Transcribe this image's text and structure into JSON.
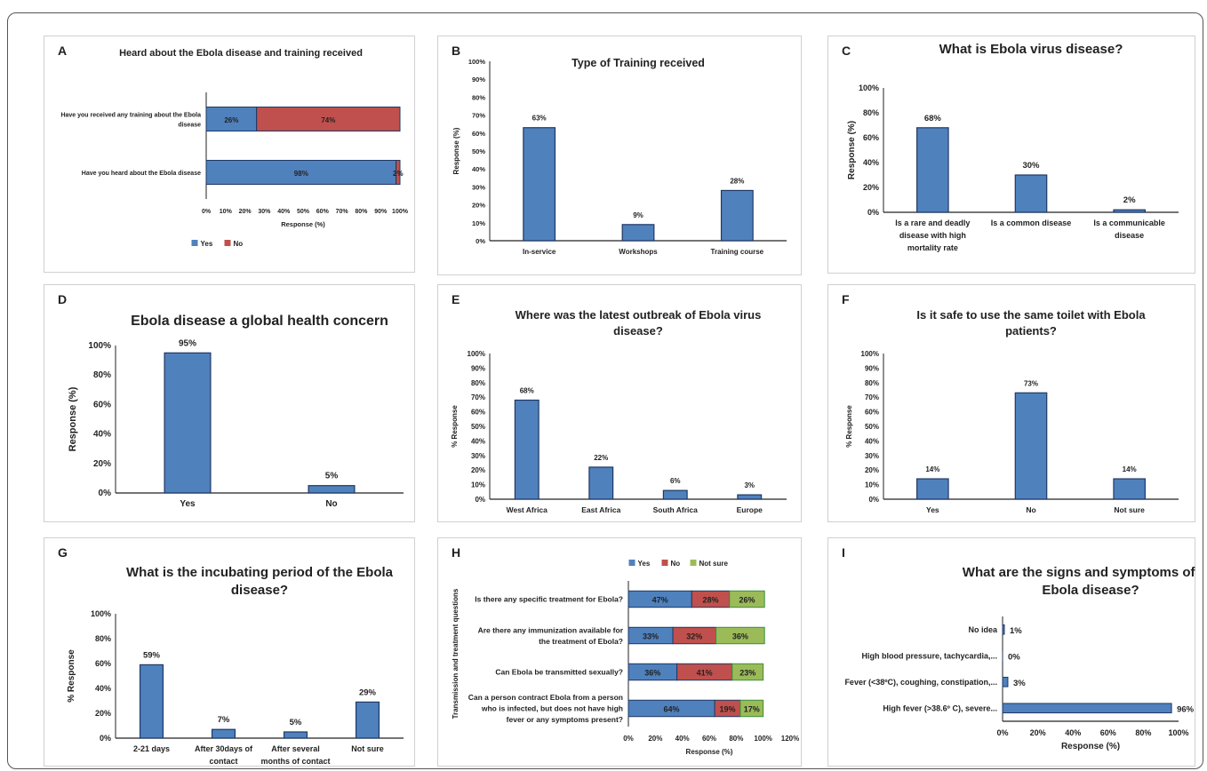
{
  "panels": [
    {
      "letter": "A",
      "type": "hbar-stacked",
      "title": [
        "Heard about the Ebola disease and training received"
      ],
      "categories": [
        [
          "Have you received any training about the Ebola",
          "disease"
        ],
        [
          "Have you heard about the Ebola disease"
        ]
      ],
      "series": [
        {
          "name": "Yes",
          "color": "#4f81bd",
          "values": [
            26,
            98
          ],
          "labels": [
            "26%",
            "98%"
          ]
        },
        {
          "name": "No",
          "color": "#c0504d",
          "values": [
            74,
            2
          ],
          "labels": [
            "74%",
            "2%"
          ]
        }
      ],
      "xlim": [
        0,
        100
      ],
      "xticks": [
        "0%",
        "10%",
        "20%",
        "30%",
        "40%",
        "50%",
        "60%",
        "70%",
        "80%",
        "90%",
        "100%"
      ],
      "xlabel": "Response (%)",
      "ylabel": "",
      "legend": "bottom"
    },
    {
      "letter": "B",
      "type": "bar",
      "title": [
        "Type of Training received"
      ],
      "categories": [
        [
          "In-service"
        ],
        [
          "Workshops"
        ],
        [
          "Training course"
        ]
      ],
      "values": [
        63,
        9,
        28
      ],
      "labels": [
        "63%",
        "9%",
        "28%"
      ],
      "ylim": [
        0,
        100
      ],
      "yticks": [
        "0%",
        "10%",
        "20%",
        "30%",
        "40%",
        "50%",
        "60%",
        "70%",
        "80%",
        "90%",
        "100%"
      ],
      "ylabel": "Response (%)",
      "xlabel": ""
    },
    {
      "letter": "C",
      "type": "bar",
      "title": [
        "What is Ebola virus disease?"
      ],
      "categories": [
        [
          "Is a rare and deadly",
          "disease with high",
          "mortality rate"
        ],
        [
          "Is a common disease"
        ],
        [
          "Is a communicable",
          "disease"
        ]
      ],
      "values": [
        68,
        30,
        2
      ],
      "labels": [
        "68%",
        "30%",
        "2%"
      ],
      "ylim": [
        0,
        100
      ],
      "yticks": [
        "0%",
        "20%",
        "40%",
        "60%",
        "80%",
        "100%"
      ],
      "ylabel": "Response (%)",
      "xlabel": ""
    },
    {
      "letter": "D",
      "type": "bar",
      "title": [
        "Ebola disease a global health concern"
      ],
      "categories": [
        [
          "Yes"
        ],
        [
          "No"
        ]
      ],
      "values": [
        95,
        5
      ],
      "labels": [
        "95%",
        "5%"
      ],
      "ylim": [
        0,
        100
      ],
      "yticks": [
        "0%",
        "20%",
        "40%",
        "60%",
        "80%",
        "100%"
      ],
      "ylabel": "Response (%)",
      "xlabel": ""
    },
    {
      "letter": "E",
      "type": "bar",
      "title": [
        "Where was the latest outbreak of Ebola virus",
        "disease?"
      ],
      "categories": [
        [
          "West Africa"
        ],
        [
          "East Africa"
        ],
        [
          "South Africa"
        ],
        [
          "Europe"
        ]
      ],
      "values": [
        68,
        22,
        6,
        3
      ],
      "labels": [
        "68%",
        "22%",
        "6%",
        "3%"
      ],
      "ylim": [
        0,
        100
      ],
      "yticks": [
        "0%",
        "10%",
        "20%",
        "30%",
        "40%",
        "50%",
        "60%",
        "70%",
        "80%",
        "90%",
        "100%"
      ],
      "ylabel": "% Response",
      "xlabel": ""
    },
    {
      "letter": "F",
      "type": "bar",
      "title": [
        "Is it safe to use the same toilet with Ebola",
        "patients?"
      ],
      "categories": [
        [
          "Yes"
        ],
        [
          "No"
        ],
        [
          "Not sure"
        ]
      ],
      "values": [
        14,
        73,
        14
      ],
      "labels": [
        "14%",
        "73%",
        "14%"
      ],
      "ylim": [
        0,
        100
      ],
      "yticks": [
        "0%",
        "10%",
        "20%",
        "30%",
        "40%",
        "50%",
        "60%",
        "70%",
        "80%",
        "90%",
        "100%"
      ],
      "ylabel": "% Response",
      "xlabel": ""
    },
    {
      "letter": "G",
      "type": "bar",
      "title": [
        "What is the incubating period of the Ebola",
        "disease?"
      ],
      "categories": [
        [
          "2-21 days"
        ],
        [
          "After 30days of",
          "contact"
        ],
        [
          "After several",
          "months of contact"
        ],
        [
          "Not sure"
        ]
      ],
      "values": [
        59,
        7,
        5,
        29
      ],
      "labels": [
        "59%",
        "7%",
        "5%",
        "29%"
      ],
      "ylim": [
        0,
        100
      ],
      "yticks": [
        "0%",
        "20%",
        "40%",
        "60%",
        "80%",
        "100%"
      ],
      "ylabel": "% Response",
      "xlabel": ""
    },
    {
      "letter": "H",
      "type": "hbar-stacked",
      "title": [],
      "categories": [
        [
          "Is there any specific treatment for Ebola?"
        ],
        [
          "Are there any immunization available for",
          "the treatment of Ebola?"
        ],
        [
          "Can Ebola be transmitted sexually?"
        ],
        [
          "Can a person contract Ebola from a person",
          "who is infected, but does not have high",
          "fever or any symptoms present?"
        ]
      ],
      "series": [
        {
          "name": "Yes",
          "color": "#4f81bd",
          "values": [
            47,
            33,
            36,
            64
          ],
          "labels": [
            "47%",
            "33%",
            "36%",
            "64%"
          ]
        },
        {
          "name": "No",
          "color": "#c0504d",
          "values": [
            28,
            32,
            41,
            19
          ],
          "labels": [
            "28%",
            "32%",
            "41%",
            "19%"
          ]
        },
        {
          "name": "Not sure",
          "color": "#9bbb59",
          "values": [
            26,
            36,
            23,
            17
          ],
          "labels": [
            "26%",
            "36%",
            "23%",
            "17%"
          ]
        }
      ],
      "xlim": [
        0,
        120
      ],
      "xticks": [
        "0%",
        "20%",
        "40%",
        "60%",
        "80%",
        "100%",
        "120%"
      ],
      "xlabel": "Response (%)",
      "ylabel": "Transmission and treatment questions",
      "legend": "top"
    },
    {
      "letter": "I",
      "type": "hbar",
      "title": [
        "What are the signs and symptoms of the",
        "Ebola disease?"
      ],
      "categories": [
        [
          "No idea"
        ],
        [
          "High blood pressure, tachycardia,..."
        ],
        [
          "Fever (<38ºC), coughing, constipation,..."
        ],
        [
          "High fever (>38.6º C), severe..."
        ]
      ],
      "values": [
        1,
        0,
        3,
        96
      ],
      "labels": [
        "1%",
        "0%",
        "3%",
        "96%"
      ],
      "xlim": [
        0,
        100
      ],
      "xticks": [
        "0%",
        "20%",
        "40%",
        "60%",
        "80%",
        "100%"
      ],
      "xlabel": "Response (%)",
      "ylabel": ""
    }
  ]
}
